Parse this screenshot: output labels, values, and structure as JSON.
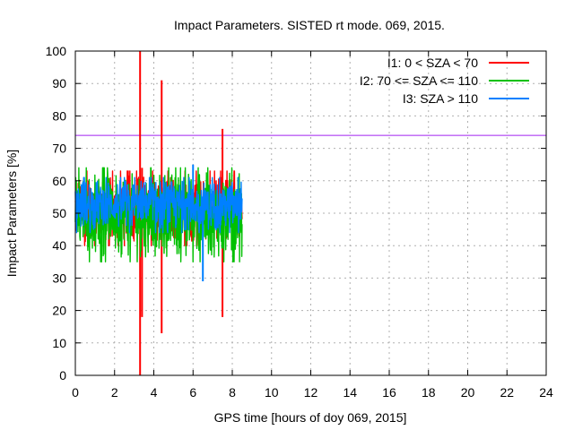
{
  "chart_data": {
    "type": "line",
    "title": "Impact Parameters. SISTED rt mode. 069, 2015.",
    "xlabel": "GPS time [hours of doy 069, 2015]",
    "ylabel": "Impact Parameters [%]",
    "xlim": [
      0,
      24
    ],
    "ylim": [
      0,
      100
    ],
    "xticks": [
      0,
      2,
      4,
      6,
      8,
      10,
      12,
      14,
      16,
      18,
      20,
      22,
      24
    ],
    "yticks": [
      0,
      10,
      20,
      30,
      40,
      50,
      60,
      70,
      80,
      90,
      100
    ],
    "grid": true,
    "legend_position": "top-right",
    "threshold": {
      "value": 74,
      "color": "#a020f0"
    },
    "series": [
      {
        "name": "I1: 0 < SZA < 70",
        "color": "#ff0000",
        "x_range": [
          0,
          8.5
        ],
        "base_range": [
          40,
          63
        ],
        "spikes": [
          {
            "x": 3.3,
            "high": 100,
            "low": 0
          },
          {
            "x": 3.4,
            "high": 64,
            "low": 18
          },
          {
            "x": 4.4,
            "high": 91,
            "low": 13
          },
          {
            "x": 7.5,
            "high": 76,
            "low": 18
          }
        ]
      },
      {
        "name": "I2: 70 <= SZA <= 110",
        "color": "#00c000",
        "x_range": [
          0,
          8.5
        ],
        "base_range": [
          35,
          64
        ],
        "spikes": []
      },
      {
        "name": "I3: SZA > 110",
        "color": "#0080ff",
        "x_range": [
          0,
          8.5
        ],
        "base_range": [
          44,
          61
        ],
        "spikes": [
          {
            "x": 6.5,
            "high": 55,
            "low": 29
          },
          {
            "x": 6.0,
            "high": 65,
            "low": 48
          }
        ]
      }
    ]
  }
}
